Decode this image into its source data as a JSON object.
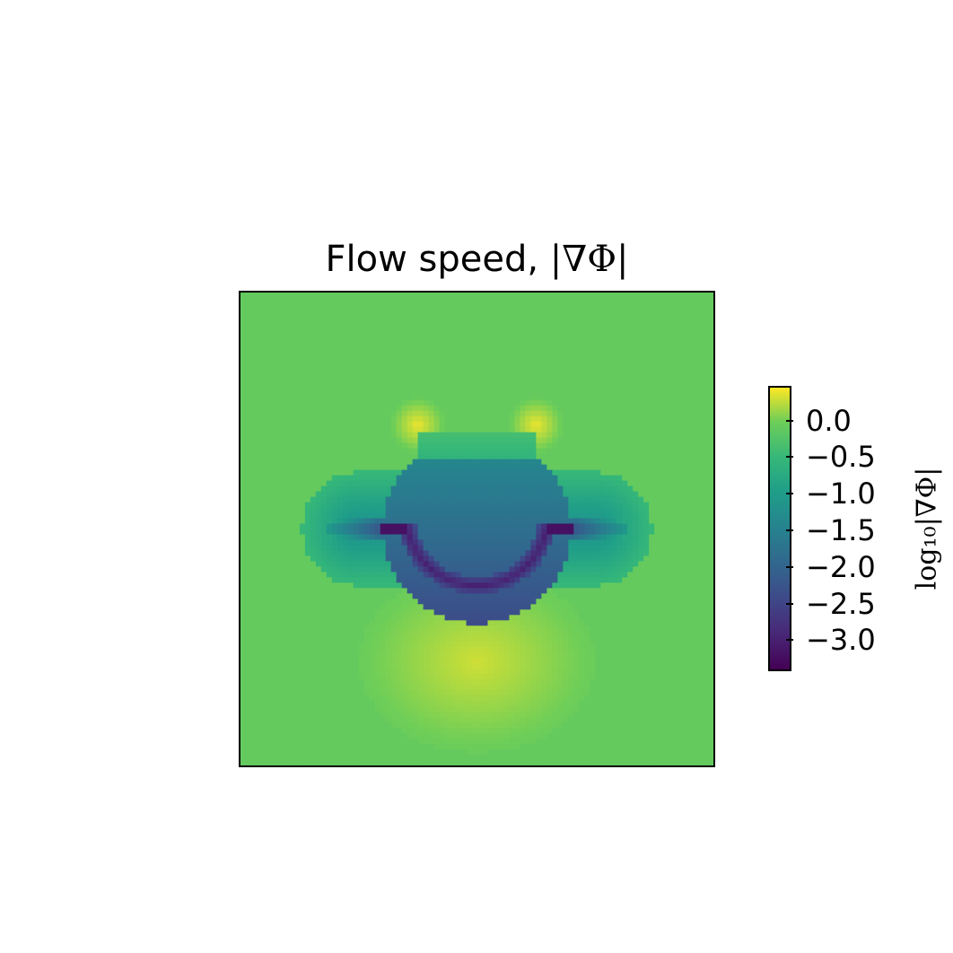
{
  "chart_data": {
    "type": "heatmap",
    "title_prefix": "Flow speed, ",
    "title_math": "|∇Φ|",
    "colormap": "viridis",
    "colorbar": {
      "label": "log₁₀|∇Φ|",
      "range": [
        -3.4,
        0.45
      ],
      "ticks": [
        0.0,
        -0.5,
        -1.0,
        -1.5,
        -2.0,
        -2.5,
        -3.0
      ],
      "tick_labels": [
        "0.0",
        "−0.5",
        "−1.0",
        "−1.5",
        "−2.0",
        "−2.5",
        "−3.0"
      ]
    },
    "field": {
      "background_value": -0.1,
      "circle": {
        "center": [
          0.5,
          0.5
        ],
        "radius": 0.2,
        "inside_value_top": -1.4,
        "inside_value_bottom": -2.4
      },
      "arc_value": -3.0,
      "slit_value": -3.2,
      "peak_value": 0.3
    },
    "xticks": [],
    "yticks": []
  },
  "colors": {
    "viridis_low": "#440154",
    "viridis_mid": "#21918c",
    "viridis_high": "#fde725",
    "axes": "#000000"
  }
}
